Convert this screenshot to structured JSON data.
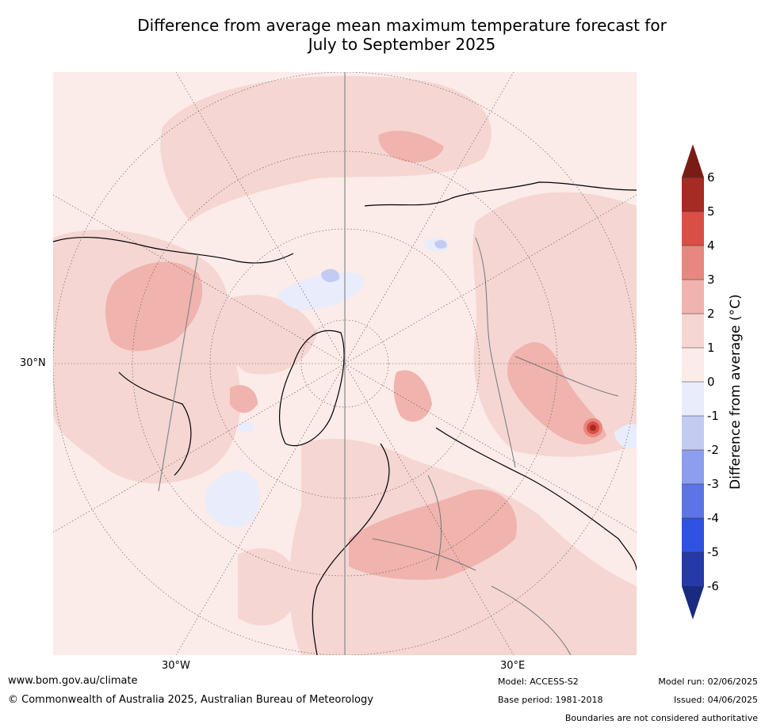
{
  "title": {
    "line1": "Difference from average mean maximum temperature forecast for",
    "line2": "July to September 2025"
  },
  "map": {
    "latitude_labels": [
      "30°N"
    ],
    "longitude_labels": [
      "30°W",
      "30°E"
    ],
    "projection": "north polar stereographic",
    "gridlines": true
  },
  "colorbar": {
    "label": "Difference from average (°C)",
    "ticks": [
      "6",
      "5",
      "4",
      "3",
      "2",
      "1",
      "0",
      "-1",
      "-2",
      "-3",
      "-4",
      "-5",
      "-6"
    ],
    "colors": [
      "#7a1c16",
      "#a62b24",
      "#d94e45",
      "#e8877f",
      "#f0b3ad",
      "#f5d6d2",
      "#fbebe9",
      "#e9ecfb",
      "#c3cbf3",
      "#8e9eee",
      "#5c75e6",
      "#2f52e0",
      "#2639a8",
      "#1a2a80"
    ]
  },
  "footer": {
    "website": "www.bom.gov.au/climate",
    "copyright": "© Commonwealth of Australia 2025, Australian Bureau of Meteorology",
    "model": "Model: ACCESS-S2",
    "base_period": "Base period: 1981-2018",
    "model_run": "Model run: 02/06/2025",
    "issued": "Issued: 04/06/2025",
    "disclaimer": "Boundaries are not considered authoritative"
  }
}
